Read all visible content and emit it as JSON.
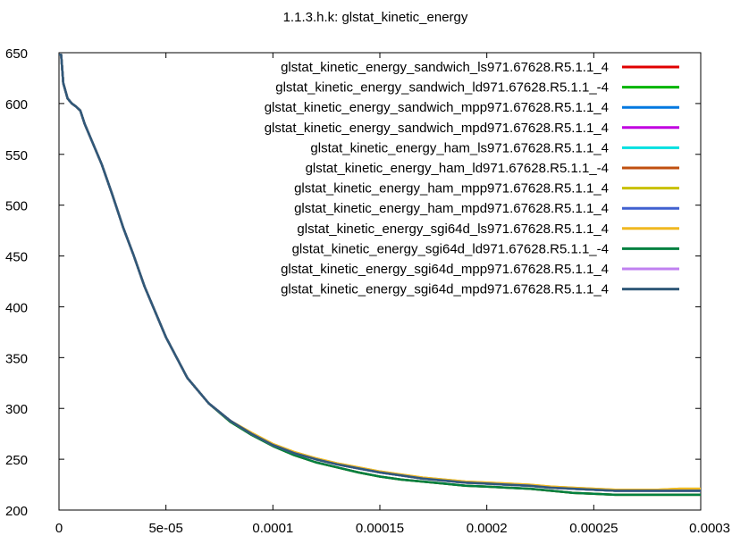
{
  "chart_data": {
    "type": "line",
    "title": "1.1.3.h.k: glstat_kinetic_energy",
    "xlabel": "",
    "ylabel": "",
    "xlim": [
      0,
      0.0003
    ],
    "ylim": [
      200,
      650
    ],
    "x_ticks": [
      0,
      5e-05,
      0.0001,
      0.00015,
      0.0002,
      0.00025,
      0.0003
    ],
    "x_tick_labels": [
      "0",
      "5e-05",
      "0.0001",
      "0.00015",
      "0.0002",
      "0.00025",
      "0.0003"
    ],
    "y_ticks": [
      200,
      250,
      300,
      350,
      400,
      450,
      500,
      550,
      600,
      650
    ],
    "y_tick_labels": [
      "200",
      "250",
      "300",
      "350",
      "400",
      "450",
      "500",
      "550",
      "600",
      "650"
    ],
    "grid": false,
    "legend_position": "top-right",
    "series": [
      {
        "name": "glstat_kinetic_energy_sandwich_ls971.67628.R5.1.1_4",
        "color": "#e00000",
        "x": [
          0,
          1e-06,
          2e-06,
          4e-06,
          6e-06,
          8e-06,
          1e-05,
          1.2e-05,
          1.5e-05,
          2e-05,
          2.5e-05,
          3e-05,
          3.5e-05,
          4e-05,
          4.5e-05,
          5e-05,
          6e-05,
          7e-05,
          8e-05,
          9e-05,
          0.0001,
          0.00011,
          0.00012,
          0.00013,
          0.00014,
          0.00015,
          0.00016,
          0.00017,
          0.00018,
          0.00019,
          0.0002,
          0.00021,
          0.00022,
          0.00023,
          0.00024,
          0.00025,
          0.00026,
          0.00027,
          0.00028,
          0.00029,
          0.0003
        ],
        "y": [
          648,
          648,
          620,
          605,
          600,
          597,
          593,
          580,
          565,
          540,
          510,
          478,
          450,
          420,
          395,
          370,
          330,
          305,
          288,
          275,
          264,
          256,
          250,
          245,
          241,
          237,
          234,
          231,
          229,
          227,
          226,
          225,
          224,
          222,
          221,
          220,
          219,
          219,
          219,
          219,
          219
        ]
      },
      {
        "name": "glstat_kinetic_energy_sandwich_ld971.67628.R5.1.1_-4",
        "color": "#00b400",
        "x": [
          0,
          1e-06,
          2e-06,
          4e-06,
          6e-06,
          8e-06,
          1e-05,
          1.2e-05,
          1.5e-05,
          2e-05,
          2.5e-05,
          3e-05,
          3.5e-05,
          4e-05,
          4.5e-05,
          5e-05,
          6e-05,
          7e-05,
          8e-05,
          9e-05,
          0.0001,
          0.00011,
          0.00012,
          0.00013,
          0.00014,
          0.00015,
          0.00016,
          0.00017,
          0.00018,
          0.00019,
          0.0002,
          0.00021,
          0.00022,
          0.00023,
          0.00024,
          0.00025,
          0.00026,
          0.00027,
          0.00028,
          0.00029,
          0.0003
        ],
        "y": [
          648,
          648,
          620,
          605,
          600,
          597,
          593,
          580,
          565,
          540,
          510,
          478,
          450,
          420,
          395,
          370,
          330,
          305,
          287,
          274,
          263,
          254,
          247,
          242,
          237,
          233,
          230,
          228,
          226,
          224,
          223,
          222,
          221,
          219,
          217,
          216,
          215,
          215,
          215,
          215,
          215
        ]
      },
      {
        "name": "glstat_kinetic_energy_sandwich_mpp971.67628.R5.1.1_4",
        "color": "#0078e0",
        "x": [
          0,
          1e-06,
          2e-06,
          4e-06,
          6e-06,
          8e-06,
          1e-05,
          1.2e-05,
          1.5e-05,
          2e-05,
          2.5e-05,
          3e-05,
          3.5e-05,
          4e-05,
          4.5e-05,
          5e-05,
          6e-05,
          7e-05,
          8e-05,
          9e-05,
          0.0001,
          0.00011,
          0.00012,
          0.00013,
          0.00014,
          0.00015,
          0.00016,
          0.00017,
          0.00018,
          0.00019,
          0.0002,
          0.00021,
          0.00022,
          0.00023,
          0.00024,
          0.00025,
          0.00026,
          0.00027,
          0.00028,
          0.00029,
          0.0003
        ],
        "y": [
          648,
          648,
          620,
          605,
          600,
          597,
          593,
          580,
          565,
          540,
          510,
          478,
          450,
          420,
          395,
          370,
          330,
          305,
          288,
          275,
          264,
          256,
          250,
          245,
          241,
          237,
          234,
          231,
          229,
          227,
          226,
          225,
          224,
          222,
          221,
          220,
          219,
          219,
          219,
          219,
          219
        ]
      },
      {
        "name": "glstat_kinetic_energy_sandwich_mpd971.67628.R5.1.1_4",
        "color": "#c000e0",
        "x": [
          0,
          1e-06,
          2e-06,
          4e-06,
          6e-06,
          8e-06,
          1e-05,
          1.2e-05,
          1.5e-05,
          2e-05,
          2.5e-05,
          3e-05,
          3.5e-05,
          4e-05,
          4.5e-05,
          5e-05,
          6e-05,
          7e-05,
          8e-05,
          9e-05,
          0.0001,
          0.00011,
          0.00012,
          0.00013,
          0.00014,
          0.00015,
          0.00016,
          0.00017,
          0.00018,
          0.00019,
          0.0002,
          0.00021,
          0.00022,
          0.00023,
          0.00024,
          0.00025,
          0.00026,
          0.00027,
          0.00028,
          0.00029,
          0.0003
        ],
        "y": [
          648,
          648,
          620,
          605,
          600,
          597,
          593,
          580,
          565,
          540,
          510,
          478,
          450,
          420,
          395,
          370,
          330,
          305,
          288,
          275,
          264,
          256,
          250,
          245,
          241,
          237,
          234,
          231,
          229,
          227,
          226,
          225,
          224,
          222,
          221,
          220,
          219,
          219,
          219,
          219,
          219
        ]
      },
      {
        "name": "glstat_kinetic_energy_ham_ls971.67628.R5.1.1_4",
        "color": "#00e0e0",
        "x": [
          0,
          1e-06,
          2e-06,
          4e-06,
          6e-06,
          8e-06,
          1e-05,
          1.2e-05,
          1.5e-05,
          2e-05,
          2.5e-05,
          3e-05,
          3.5e-05,
          4e-05,
          4.5e-05,
          5e-05,
          6e-05,
          7e-05,
          8e-05,
          9e-05,
          0.0001,
          0.00011,
          0.00012,
          0.00013,
          0.00014,
          0.00015,
          0.00016,
          0.00017,
          0.00018,
          0.00019,
          0.0002,
          0.00021,
          0.00022,
          0.00023,
          0.00024,
          0.00025,
          0.00026,
          0.00027,
          0.00028,
          0.00029,
          0.0003
        ],
        "y": [
          648,
          648,
          620,
          605,
          600,
          597,
          593,
          580,
          565,
          540,
          510,
          478,
          450,
          420,
          395,
          370,
          330,
          305,
          288,
          275,
          264,
          256,
          250,
          245,
          241,
          237,
          234,
          231,
          229,
          227,
          226,
          225,
          224,
          222,
          221,
          220,
          219,
          219,
          219,
          219,
          219
        ]
      },
      {
        "name": "glstat_kinetic_energy_ham_ld971.67628.R5.1.1_-4",
        "color": "#c05010",
        "x": [
          0,
          1e-06,
          2e-06,
          4e-06,
          6e-06,
          8e-06,
          1e-05,
          1.2e-05,
          1.5e-05,
          2e-05,
          2.5e-05,
          3e-05,
          3.5e-05,
          4e-05,
          4.5e-05,
          5e-05,
          6e-05,
          7e-05,
          8e-05,
          9e-05,
          0.0001,
          0.00011,
          0.00012,
          0.00013,
          0.00014,
          0.00015,
          0.00016,
          0.00017,
          0.00018,
          0.00019,
          0.0002,
          0.00021,
          0.00022,
          0.00023,
          0.00024,
          0.00025,
          0.00026,
          0.00027,
          0.00028,
          0.00029,
          0.0003
        ],
        "y": [
          648,
          648,
          620,
          605,
          600,
          597,
          593,
          580,
          565,
          540,
          510,
          478,
          450,
          420,
          395,
          370,
          330,
          305,
          287,
          274,
          263,
          254,
          247,
          242,
          237,
          233,
          230,
          228,
          226,
          224,
          223,
          222,
          221,
          219,
          217,
          216,
          215,
          215,
          215,
          215,
          215
        ]
      },
      {
        "name": "glstat_kinetic_energy_ham_mpp971.67628.R5.1.1_4",
        "color": "#c8c000",
        "x": [
          0,
          1e-06,
          2e-06,
          4e-06,
          6e-06,
          8e-06,
          1e-05,
          1.2e-05,
          1.5e-05,
          2e-05,
          2.5e-05,
          3e-05,
          3.5e-05,
          4e-05,
          4.5e-05,
          5e-05,
          6e-05,
          7e-05,
          8e-05,
          9e-05,
          0.0001,
          0.00011,
          0.00012,
          0.00013,
          0.00014,
          0.00015,
          0.00016,
          0.00017,
          0.00018,
          0.00019,
          0.0002,
          0.00021,
          0.00022,
          0.00023,
          0.00024,
          0.00025,
          0.00026,
          0.00027,
          0.00028,
          0.00029,
          0.0003
        ],
        "y": [
          648,
          648,
          620,
          605,
          600,
          597,
          593,
          580,
          565,
          540,
          510,
          478,
          450,
          420,
          395,
          370,
          330,
          305,
          288,
          276,
          265,
          257,
          251,
          246,
          242,
          238,
          235,
          232,
          230,
          228,
          227,
          226,
          225,
          223,
          222,
          221,
          220,
          220,
          220,
          221,
          221
        ]
      },
      {
        "name": "glstat_kinetic_energy_ham_mpd971.67628.R5.1.1_4",
        "color": "#4060d0",
        "x": [
          0,
          1e-06,
          2e-06,
          4e-06,
          6e-06,
          8e-06,
          1e-05,
          1.2e-05,
          1.5e-05,
          2e-05,
          2.5e-05,
          3e-05,
          3.5e-05,
          4e-05,
          4.5e-05,
          5e-05,
          6e-05,
          7e-05,
          8e-05,
          9e-05,
          0.0001,
          0.00011,
          0.00012,
          0.00013,
          0.00014,
          0.00015,
          0.00016,
          0.00017,
          0.00018,
          0.00019,
          0.0002,
          0.00021,
          0.00022,
          0.00023,
          0.00024,
          0.00025,
          0.00026,
          0.00027,
          0.00028,
          0.00029,
          0.0003
        ],
        "y": [
          648,
          648,
          620,
          605,
          600,
          597,
          593,
          580,
          565,
          540,
          510,
          478,
          450,
          420,
          395,
          370,
          330,
          305,
          288,
          275,
          264,
          256,
          250,
          245,
          241,
          237,
          234,
          231,
          229,
          227,
          226,
          225,
          224,
          222,
          221,
          220,
          219,
          219,
          219,
          219,
          219
        ]
      },
      {
        "name": "glstat_kinetic_energy_sgi64d_ls971.67628.R5.1.1_4",
        "color": "#f0b820",
        "x": [
          0,
          1e-06,
          2e-06,
          4e-06,
          6e-06,
          8e-06,
          1e-05,
          1.2e-05,
          1.5e-05,
          2e-05,
          2.5e-05,
          3e-05,
          3.5e-05,
          4e-05,
          4.5e-05,
          5e-05,
          6e-05,
          7e-05,
          8e-05,
          9e-05,
          0.0001,
          0.00011,
          0.00012,
          0.00013,
          0.00014,
          0.00015,
          0.00016,
          0.00017,
          0.00018,
          0.00019,
          0.0002,
          0.00021,
          0.00022,
          0.00023,
          0.00024,
          0.00025,
          0.00026,
          0.00027,
          0.00028,
          0.00029,
          0.0003
        ],
        "y": [
          648,
          648,
          620,
          605,
          600,
          597,
          593,
          580,
          565,
          540,
          510,
          478,
          450,
          420,
          395,
          370,
          330,
          305,
          288,
          276,
          265,
          257,
          251,
          246,
          242,
          238,
          235,
          232,
          230,
          228,
          227,
          226,
          225,
          223,
          222,
          221,
          220,
          220,
          220,
          221,
          221
        ]
      },
      {
        "name": "glstat_kinetic_energy_sgi64d_ld971.67628.R5.1.1_-4",
        "color": "#008040",
        "x": [
          0,
          1e-06,
          2e-06,
          4e-06,
          6e-06,
          8e-06,
          1e-05,
          1.2e-05,
          1.5e-05,
          2e-05,
          2.5e-05,
          3e-05,
          3.5e-05,
          4e-05,
          4.5e-05,
          5e-05,
          6e-05,
          7e-05,
          8e-05,
          9e-05,
          0.0001,
          0.00011,
          0.00012,
          0.00013,
          0.00014,
          0.00015,
          0.00016,
          0.00017,
          0.00018,
          0.00019,
          0.0002,
          0.00021,
          0.00022,
          0.00023,
          0.00024,
          0.00025,
          0.00026,
          0.00027,
          0.00028,
          0.00029,
          0.0003
        ],
        "y": [
          648,
          648,
          620,
          605,
          600,
          597,
          593,
          580,
          565,
          540,
          510,
          478,
          450,
          420,
          395,
          370,
          330,
          305,
          287,
          274,
          263,
          254,
          247,
          242,
          237,
          233,
          230,
          228,
          226,
          224,
          223,
          222,
          221,
          219,
          217,
          216,
          215,
          215,
          215,
          215,
          215
        ]
      },
      {
        "name": "glstat_kinetic_energy_sgi64d_mpp971.67628.R5.1.1_4",
        "color": "#c080f0",
        "x": [
          0,
          1e-06,
          2e-06,
          4e-06,
          6e-06,
          8e-06,
          1e-05,
          1.2e-05,
          1.5e-05,
          2e-05,
          2.5e-05,
          3e-05,
          3.5e-05,
          4e-05,
          4.5e-05,
          5e-05,
          6e-05,
          7e-05,
          8e-05,
          9e-05,
          0.0001,
          0.00011,
          0.00012,
          0.00013,
          0.00014,
          0.00015,
          0.00016,
          0.00017,
          0.00018,
          0.00019,
          0.0002,
          0.00021,
          0.00022,
          0.00023,
          0.00024,
          0.00025,
          0.00026,
          0.00027,
          0.00028,
          0.00029,
          0.0003
        ],
        "y": [
          648,
          648,
          620,
          605,
          600,
          597,
          593,
          580,
          565,
          540,
          510,
          478,
          450,
          420,
          395,
          370,
          330,
          305,
          288,
          275,
          264,
          256,
          250,
          245,
          241,
          237,
          234,
          231,
          229,
          227,
          226,
          225,
          224,
          222,
          221,
          220,
          219,
          219,
          219,
          219,
          219
        ]
      },
      {
        "name": "glstat_kinetic_energy_sgi64d_mpd971.67628.R5.1.1_4",
        "color": "#305878",
        "x": [
          0,
          1e-06,
          2e-06,
          4e-06,
          6e-06,
          8e-06,
          1e-05,
          1.2e-05,
          1.5e-05,
          2e-05,
          2.5e-05,
          3e-05,
          3.5e-05,
          4e-05,
          4.5e-05,
          5e-05,
          6e-05,
          7e-05,
          8e-05,
          9e-05,
          0.0001,
          0.00011,
          0.00012,
          0.00013,
          0.00014,
          0.00015,
          0.00016,
          0.00017,
          0.00018,
          0.00019,
          0.0002,
          0.00021,
          0.00022,
          0.00023,
          0.00024,
          0.00025,
          0.00026,
          0.00027,
          0.00028,
          0.00029,
          0.0003
        ],
        "y": [
          648,
          648,
          620,
          605,
          600,
          597,
          593,
          580,
          565,
          540,
          510,
          478,
          450,
          420,
          395,
          370,
          330,
          305,
          288,
          275,
          264,
          256,
          250,
          245,
          241,
          237,
          234,
          231,
          229,
          227,
          226,
          225,
          224,
          222,
          221,
          220,
          219,
          219,
          219,
          219,
          219
        ]
      }
    ]
  }
}
